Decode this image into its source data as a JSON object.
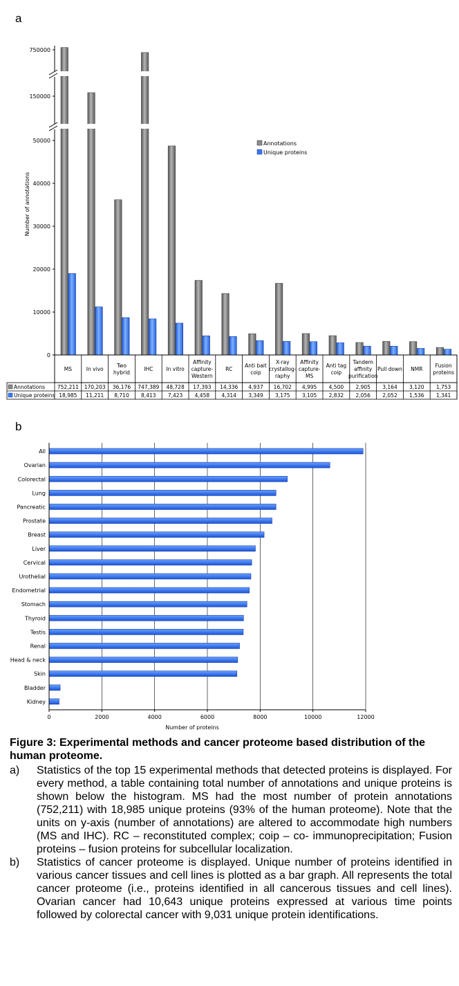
{
  "chart_data": [
    {
      "panel": "a",
      "type": "bar",
      "ylabel": "Number of annotations",
      "y_ticks": [
        "0",
        "10000",
        "20000",
        "30000",
        "40000",
        "50000",
        "150000",
        "750000"
      ],
      "y_scale": "broken",
      "legend_position": "top-right",
      "categories": [
        [
          "MS"
        ],
        [
          "In vivo"
        ],
        [
          "Two",
          "hybrid"
        ],
        [
          "IHC"
        ],
        [
          "In vitro"
        ],
        [
          "Affinity",
          "capture-",
          "Western"
        ],
        [
          "RC"
        ],
        [
          "Anti bait",
          "coip"
        ],
        [
          "X-ray",
          "crystallog-",
          "raphy"
        ],
        [
          "Affinity",
          "capture-",
          "MS"
        ],
        [
          "Anti tag",
          "coip"
        ],
        [
          "Tandem",
          "affinity",
          "purification"
        ],
        [
          "Pull down"
        ],
        [
          "NMR"
        ],
        [
          "Fusion",
          "proteins"
        ]
      ],
      "series": [
        {
          "name": "Annotations",
          "color": "#8c8c8c",
          "values": [
            752211,
            170203,
            36176,
            747389,
            48728,
            17393,
            14336,
            4937,
            16702,
            4995,
            4500,
            2905,
            3164,
            3120,
            1753
          ],
          "labels": [
            "752,211",
            "170,203",
            "36,176",
            "747,389",
            "48,728",
            "17,393",
            "14,336",
            "4,937",
            "16,702",
            "4,995",
            "4,500",
            "2,905",
            "3,164",
            "3,120",
            "1,753"
          ]
        },
        {
          "name": "Unique proteins",
          "color": "#3a78f0",
          "values": [
            18985,
            11211,
            8710,
            8413,
            7423,
            4458,
            4314,
            3349,
            3175,
            3105,
            2832,
            2056,
            2052,
            1536,
            1341
          ],
          "labels": [
            "18,985",
            "11,211",
            "8,710",
            "8,413",
            "7,423",
            "4,458",
            "4,314",
            "3,349",
            "3,175",
            "3,105",
            "2,832",
            "2,056",
            "2,052",
            "1,536",
            "1,341"
          ]
        }
      ]
    },
    {
      "panel": "b",
      "type": "bar",
      "orientation": "horizontal",
      "xlabel": "Number of proteins",
      "xlim": [
        0,
        12000
      ],
      "x_ticks": [
        0,
        2000,
        4000,
        6000,
        8000,
        10000,
        12000
      ],
      "grid": true,
      "color": "#2a6ee8",
      "categories": [
        "All",
        "Ovarian",
        "Colorectal",
        "Lung",
        "Pancreatic",
        "Prostate",
        "Breast",
        "Liver",
        "Cervical",
        "Urothelial",
        "Endometrial",
        "Stomach",
        "Thyroid",
        "Testis",
        "Renal",
        "Head & neck",
        "Skin",
        "Bladder",
        "Kidney"
      ],
      "values": [
        11900,
        10643,
        9031,
        8600,
        8600,
        8450,
        8150,
        7820,
        7680,
        7650,
        7590,
        7500,
        7370,
        7360,
        7220,
        7150,
        7120,
        420,
        380
      ]
    }
  ],
  "caption": {
    "title": "Figure 3: Experimental methods and cancer proteome based distribution of the human proteome.",
    "items": [
      {
        "marker": "a)",
        "text": "Statistics of the top 15 experimental methods that detected proteins is displayed. For every method, a table containing total number of annotations and unique proteins is shown below the histogram. MS had the most number of protein annotations (752,211) with 18,985 unique proteins (93% of the human proteome). Note that the units on y-axis (number of annotations) are altered to accommodate high numbers (MS and IHC). RC – reconstituted complex; coip – co- immunoprecipitation; Fusion proteins – fusion proteins for subcellular localization."
      },
      {
        "marker": "b)",
        "text": "Statistics of cancer proteome is displayed. Unique number of proteins identified in various cancer tissues and cell lines is plotted as a bar graph. All represents the total cancer proteome (i.e., proteins identified in all cancerous tissues and cell lines). Ovarian cancer had 10,643 unique proteins expressed at various time points followed by colorectal cancer with 9,031 unique protein identifications."
      }
    ]
  }
}
